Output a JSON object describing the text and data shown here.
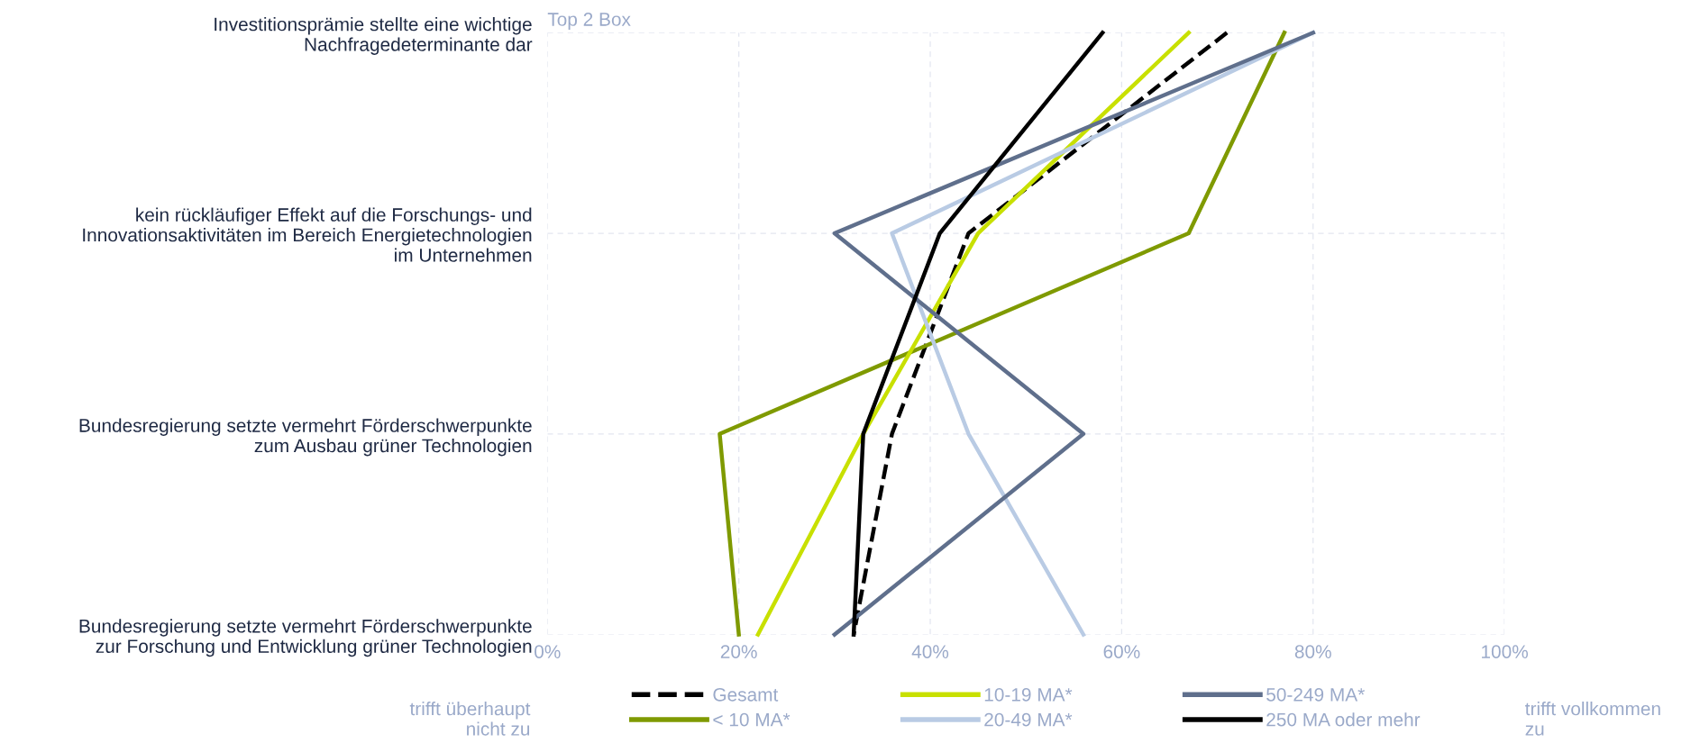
{
  "chart_data": {
    "type": "line",
    "orientation": "horizontal",
    "categories": [
      "Investitionsprämie stellte eine wichtige\nNachfragedeterminante dar",
      "kein rückläufiger Effekt auf die Forschungs- und\nInnovationsaktivitäten im Bereich Energietechnologien\nim Unternehmen",
      "Bundesregierung setzte vermehrt Förderschwerpunkte\nzum Ausbau grüner Technologien",
      "Bundesregierung setzte vermehrt Förderschwerpunkte\nzur Forschung und Entwicklung grüner Technologien"
    ],
    "series": [
      {
        "name": "Gesamt",
        "color": "#000000",
        "line_style": "dashed",
        "values": [
          71,
          44,
          36,
          32
        ]
      },
      {
        "name": "< 10 MA*",
        "color": "#7f9a00",
        "values": [
          77,
          67,
          18,
          20
        ]
      },
      {
        "name": "10-19 MA*",
        "color": "#c8e000",
        "values": [
          67,
          45,
          33,
          22
        ]
      },
      {
        "name": "20-49 MA*",
        "color": "#b9cbe4",
        "values": [
          80,
          36,
          44,
          56
        ]
      },
      {
        "name": "50-249 MA*",
        "color": "#5f6f8c",
        "values": [
          80,
          30,
          56,
          30
        ]
      },
      {
        "name": "250 MA oder mehr",
        "color": "#000000",
        "values": [
          58,
          41,
          33,
          32
        ]
      }
    ],
    "xlim": [
      0,
      100
    ],
    "xticks": [
      {
        "value": 0,
        "label": "0%"
      },
      {
        "value": 20,
        "label": "20%"
      },
      {
        "value": 40,
        "label": "40%"
      },
      {
        "value": 60,
        "label": "60%"
      },
      {
        "value": 80,
        "label": "80%"
      },
      {
        "value": 100,
        "label": "100%"
      }
    ],
    "grid": true,
    "legend": "bottom",
    "line_style": "solid",
    "marker": "none",
    "annotations": [
      "Top 2 Box",
      "trifft überhaupt\nnicht zu",
      "trifft vollkommen\nzu"
    ]
  }
}
